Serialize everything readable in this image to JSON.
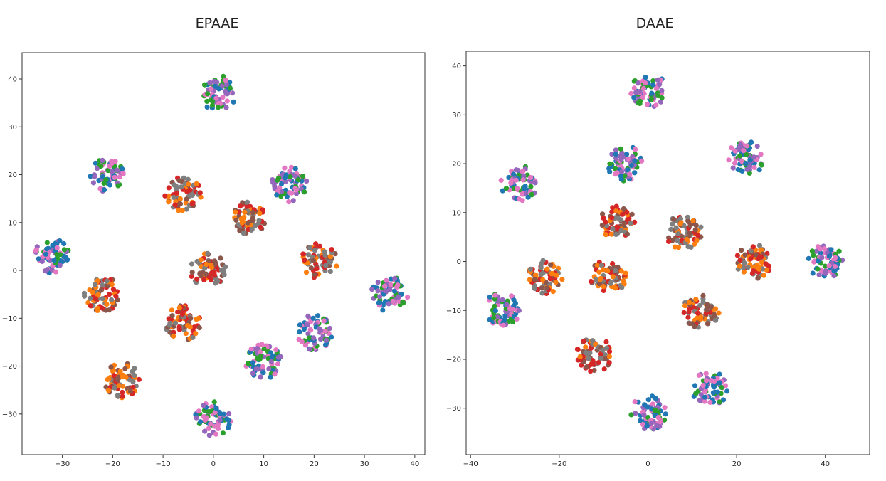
{
  "chart_data": [
    {
      "type": "scatter",
      "title": "EPAAE",
      "xlim": [
        -38,
        42
      ],
      "ylim": [
        -38.5,
        45.5
      ],
      "xticks": [
        -30,
        -20,
        -10,
        0,
        10,
        20,
        30,
        40
      ],
      "yticks": [
        -30,
        -20,
        -10,
        0,
        10,
        20,
        30,
        40
      ],
      "grid": false,
      "clusters": [
        {
          "x": 1,
          "y": 37,
          "colors": [
            "#1f77b4",
            "#2ca02c",
            "#9467bd",
            "#e377c2"
          ]
        },
        {
          "x": -21,
          "y": 20,
          "colors": [
            "#1f77b4",
            "#2ca02c",
            "#9467bd",
            "#e377c2"
          ]
        },
        {
          "x": -6,
          "y": 16,
          "colors": [
            "#8c564b",
            "#7f7f7f",
            "#ff7f0e",
            "#d62728"
          ]
        },
        {
          "x": 7,
          "y": 11,
          "colors": [
            "#8c564b",
            "#7f7f7f",
            "#ff7f0e",
            "#d62728"
          ]
        },
        {
          "x": 15,
          "y": 18,
          "colors": [
            "#1f77b4",
            "#2ca02c",
            "#9467bd",
            "#e377c2"
          ]
        },
        {
          "x": -32,
          "y": 3,
          "colors": [
            "#1f77b4",
            "#2ca02c",
            "#9467bd",
            "#e377c2"
          ]
        },
        {
          "x": -22,
          "y": -5,
          "colors": [
            "#8c564b",
            "#7f7f7f",
            "#ff7f0e",
            "#d62728"
          ]
        },
        {
          "x": -1,
          "y": 0,
          "colors": [
            "#8c564b",
            "#7f7f7f",
            "#ff7f0e",
            "#d62728"
          ]
        },
        {
          "x": 21,
          "y": 2,
          "colors": [
            "#8c564b",
            "#7f7f7f",
            "#ff7f0e",
            "#d62728"
          ]
        },
        {
          "x": 35,
          "y": -5,
          "colors": [
            "#1f77b4",
            "#2ca02c",
            "#9467bd",
            "#e377c2"
          ]
        },
        {
          "x": -6,
          "y": -11,
          "colors": [
            "#8c564b",
            "#7f7f7f",
            "#ff7f0e",
            "#d62728"
          ]
        },
        {
          "x": 20,
          "y": -13,
          "colors": [
            "#1f77b4",
            "#2ca02c",
            "#9467bd",
            "#e377c2"
          ]
        },
        {
          "x": 10,
          "y": -19,
          "colors": [
            "#1f77b4",
            "#2ca02c",
            "#9467bd",
            "#e377c2"
          ]
        },
        {
          "x": -18,
          "y": -23,
          "colors": [
            "#8c564b",
            "#7f7f7f",
            "#ff7f0e",
            "#d62728"
          ]
        },
        {
          "x": 0,
          "y": -31,
          "colors": [
            "#1f77b4",
            "#2ca02c",
            "#9467bd",
            "#e377c2"
          ]
        }
      ]
    },
    {
      "type": "scatter",
      "title": "DAAE",
      "xlim": [
        -41,
        50
      ],
      "ylim": [
        -39.5,
        43
      ],
      "xticks": [
        -40,
        -20,
        0,
        20,
        40
      ],
      "yticks": [
        -30,
        -20,
        -10,
        0,
        10,
        20,
        30,
        40
      ],
      "grid": false,
      "clusters": [
        {
          "x": 0,
          "y": 35,
          "colors": [
            "#1f77b4",
            "#2ca02c",
            "#9467bd",
            "#e377c2"
          ]
        },
        {
          "x": -29,
          "y": 16,
          "colors": [
            "#1f77b4",
            "#2ca02c",
            "#9467bd",
            "#e377c2"
          ]
        },
        {
          "x": -5,
          "y": 20,
          "colors": [
            "#1f77b4",
            "#2ca02c",
            "#9467bd",
            "#e377c2"
          ]
        },
        {
          "x": 22,
          "y": 21,
          "colors": [
            "#1f77b4",
            "#2ca02c",
            "#9467bd",
            "#e377c2"
          ]
        },
        {
          "x": -7,
          "y": 8,
          "colors": [
            "#8c564b",
            "#7f7f7f",
            "#ff7f0e",
            "#d62728"
          ]
        },
        {
          "x": 8,
          "y": 6,
          "colors": [
            "#8c564b",
            "#7f7f7f",
            "#ff7f0e",
            "#d62728"
          ]
        },
        {
          "x": -23,
          "y": -3,
          "colors": [
            "#8c564b",
            "#7f7f7f",
            "#ff7f0e",
            "#d62728"
          ]
        },
        {
          "x": -9,
          "y": -3,
          "colors": [
            "#8c564b",
            "#7f7f7f",
            "#ff7f0e",
            "#d62728"
          ]
        },
        {
          "x": 24,
          "y": 0,
          "colors": [
            "#8c564b",
            "#7f7f7f",
            "#ff7f0e",
            "#d62728"
          ]
        },
        {
          "x": 40,
          "y": 0,
          "colors": [
            "#1f77b4",
            "#2ca02c",
            "#9467bd",
            "#e377c2"
          ]
        },
        {
          "x": -33,
          "y": -10,
          "colors": [
            "#1f77b4",
            "#2ca02c",
            "#9467bd",
            "#e377c2"
          ]
        },
        {
          "x": 12,
          "y": -10,
          "colors": [
            "#8c564b",
            "#7f7f7f",
            "#ff7f0e",
            "#d62728"
          ]
        },
        {
          "x": -12,
          "y": -19,
          "colors": [
            "#8c564b",
            "#7f7f7f",
            "#ff7f0e",
            "#d62728"
          ]
        },
        {
          "x": 0,
          "y": -31,
          "colors": [
            "#1f77b4",
            "#2ca02c",
            "#9467bd",
            "#e377c2"
          ]
        },
        {
          "x": 14,
          "y": -26,
          "colors": [
            "#1f77b4",
            "#2ca02c",
            "#9467bd",
            "#e377c2"
          ]
        }
      ]
    }
  ]
}
